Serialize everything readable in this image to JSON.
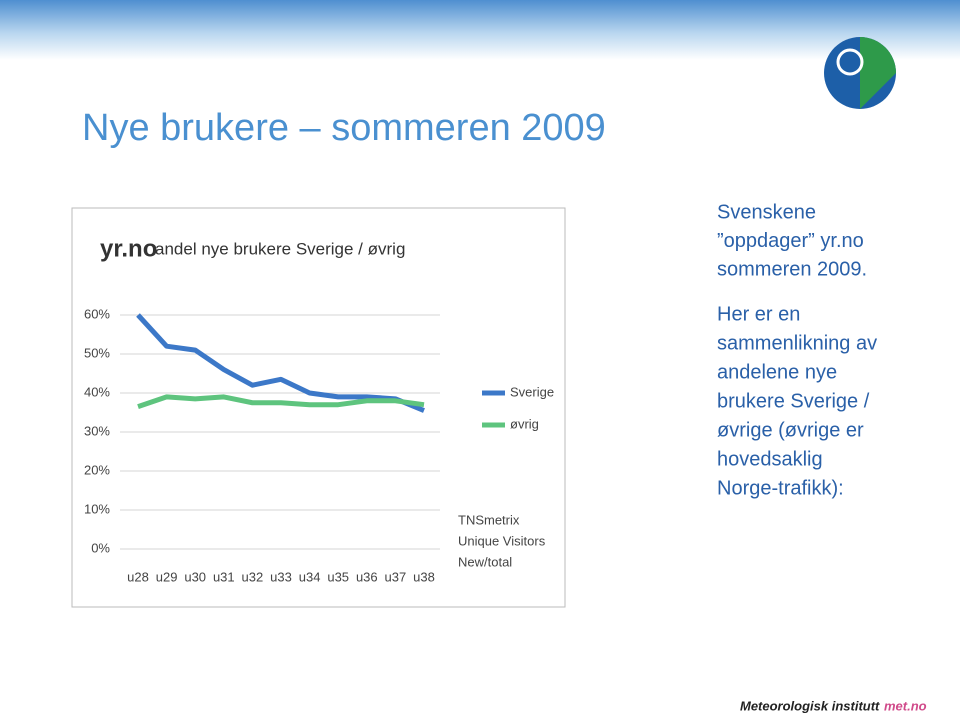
{
  "slide": {
    "title": "Nye brukere – sommeren 2009",
    "intro": [
      "Svenskene",
      "”oppdager” yr.no",
      "sommeren 2009."
    ],
    "body": [
      "Her er en",
      "sammenlikning av",
      "andelene nye",
      "brukere Sverige /",
      "øvrige (øvrige er",
      "hovedsaklig",
      "Norge-trafikk):"
    ],
    "footer": "Meteorologisk institutt",
    "footer_site": "met.no"
  },
  "chart_data": {
    "type": "line",
    "title": "yr.no",
    "subtitle": "andel nye brukere Sverige / øvrig",
    "categories": [
      "u28",
      "u29",
      "u30",
      "u31",
      "u32",
      "u33",
      "u34",
      "u35",
      "u36",
      "u37",
      "u38"
    ],
    "series": [
      {
        "name": "Sverige",
        "color": "#3c78c8",
        "values": [
          60,
          52,
          51,
          46,
          42,
          43.5,
          40,
          39,
          39,
          38.5,
          35.5
        ]
      },
      {
        "name": "øvrig",
        "color": "#5ec47e",
        "values": [
          36.5,
          39,
          38.5,
          39,
          37.5,
          37.5,
          37,
          37,
          38,
          38,
          37
        ]
      }
    ],
    "ylim": [
      0,
      60
    ],
    "yticks": [
      {
        "value": 0,
        "label": "0%"
      },
      {
        "value": 10,
        "label": "10%"
      },
      {
        "value": 20,
        "label": "20%"
      },
      {
        "value": 30,
        "label": "30%"
      },
      {
        "value": 40,
        "label": "40%"
      },
      {
        "value": 50,
        "label": "50%"
      },
      {
        "value": 60,
        "label": "60%"
      }
    ],
    "grid": true,
    "annotations": [
      "TNSmetrix",
      "Unique Visitors",
      "New/total"
    ]
  }
}
